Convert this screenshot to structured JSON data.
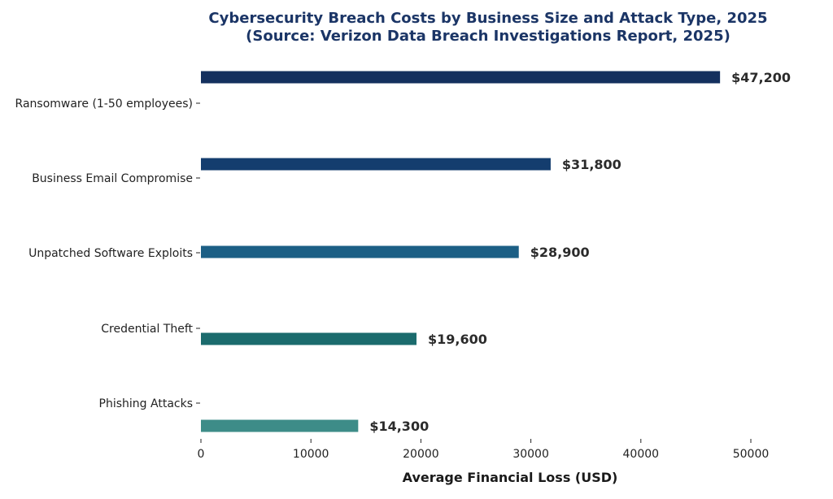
{
  "chart_data": {
    "type": "bar",
    "orientation": "horizontal",
    "title": "Cybersecurity Breach Costs by Business Size and Attack Type, 2025",
    "subtitle": "(Source: Verizon Data Breach Investigations Report, 2025)",
    "xlabel": "Average Financial Loss (USD)",
    "ylabel": "",
    "xlim": [
      0,
      52000
    ],
    "xticks": [
      0,
      10000,
      20000,
      30000,
      40000,
      50000
    ],
    "xtick_labels": [
      "0",
      "10000",
      "20000",
      "30000",
      "40000",
      "50000"
    ],
    "categories": [
      "Ransomware (1-50 employees)",
      "Business Email Compromise",
      "Unpatched Software Exploits",
      "Credential Theft",
      "Phishing Attacks"
    ],
    "values": [
      47200,
      31800,
      28900,
      19600,
      14300
    ],
    "data_labels": [
      "$47,200",
      "$31,800",
      "$28,900",
      "$19,600",
      "$14,300"
    ],
    "colors": [
      "#14305e",
      "#143d6e",
      "#1c5f85",
      "#1b6b6d",
      "#3d8c88"
    ],
    "grid": false,
    "legend": "none"
  }
}
